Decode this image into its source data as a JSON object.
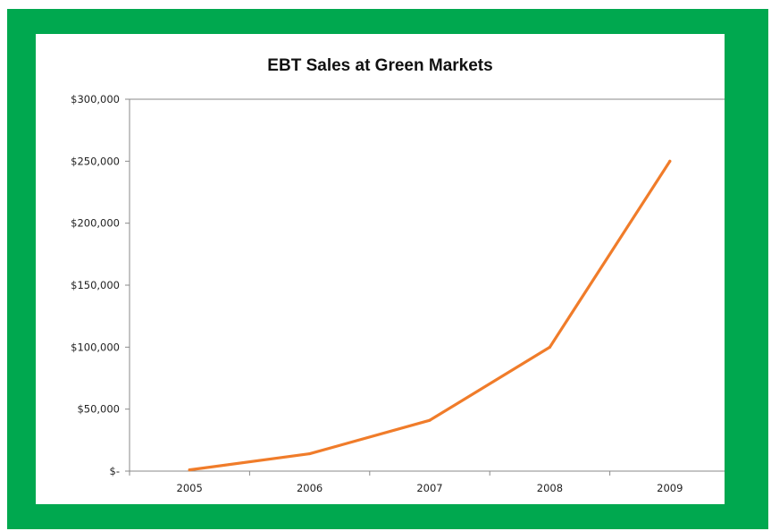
{
  "chart_data": {
    "type": "line",
    "title": "EBT Sales at Green Markets",
    "xlabel": "",
    "ylabel": "",
    "categories": [
      "2005",
      "2006",
      "2007",
      "2008",
      "2009"
    ],
    "series": [
      {
        "values": [
          1000,
          14000,
          41000,
          100000,
          250000
        ]
      }
    ],
    "ylim": [
      0,
      300000
    ],
    "yticks": [
      0,
      50000,
      100000,
      150000,
      200000,
      250000,
      300000
    ],
    "ytick_labels": [
      "$-",
      "$50,000",
      "$100,000",
      "$150,000",
      "$200,000",
      "$250,000",
      "$300,000"
    ],
    "grid": false,
    "legend": "none",
    "colors": {
      "line": "#f07c2a",
      "frame": "#00a84f",
      "axis": "#8a8a8a"
    }
  }
}
